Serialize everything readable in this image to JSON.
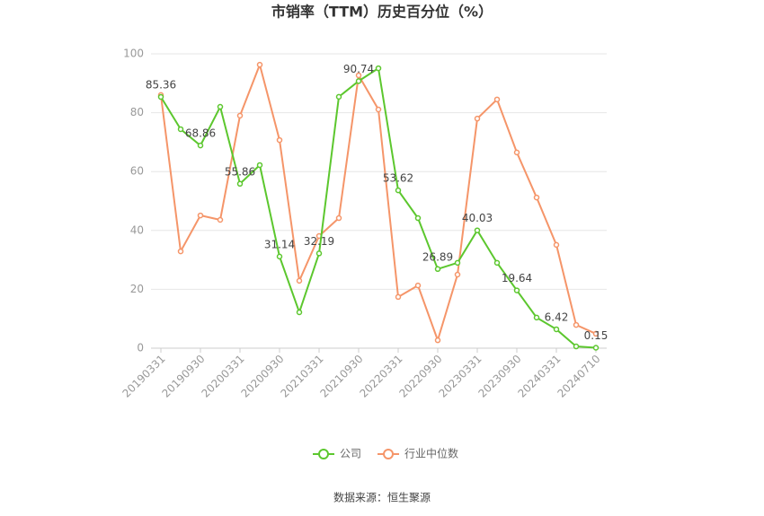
{
  "chart_data": {
    "type": "line",
    "title": "市销率（TTM）历史百分位（%）",
    "source": "数据来源：恒生聚源",
    "categories": [
      "20190331",
      null,
      "20190930",
      null,
      "20200331",
      null,
      "20200930",
      null,
      "20210331",
      null,
      "20210930",
      null,
      "20220331",
      null,
      "20220930",
      null,
      "20230331",
      null,
      "20230930",
      null,
      "20240331",
      null,
      "20240710"
    ],
    "series": [
      {
        "name": "公司",
        "color": "#5cc72e",
        "values": [
          85.36,
          74.4,
          68.86,
          82.0,
          55.86,
          62.2,
          31.14,
          12.2,
          32.19,
          85.4,
          90.74,
          95.1,
          53.62,
          44.2,
          26.89,
          29.0,
          40.03,
          29.0,
          19.64,
          10.4,
          6.42,
          0.6,
          0.15
        ],
        "value_labels": [
          "85.36",
          null,
          "68.86",
          null,
          "55.86",
          null,
          "31.14",
          null,
          "32.19",
          null,
          "90.74",
          null,
          "53.62",
          null,
          "26.89",
          null,
          "40.03",
          null,
          "19.64",
          null,
          "6.42",
          null,
          "0.15"
        ]
      },
      {
        "name": "行业中位数",
        "color": "#f59569",
        "values": [
          86.0,
          32.9,
          45.1,
          43.6,
          79.0,
          96.3,
          70.7,
          22.9,
          38.1,
          44.2,
          92.7,
          81.1,
          17.4,
          21.3,
          2.7,
          25.0,
          78.0,
          84.5,
          66.5,
          51.2,
          35.1,
          7.9,
          4.9
        ]
      }
    ],
    "ylim": [
      0,
      100
    ],
    "yticks": [
      0,
      20,
      40,
      60,
      80,
      100
    ],
    "grid": true,
    "legend": "bottom"
  }
}
